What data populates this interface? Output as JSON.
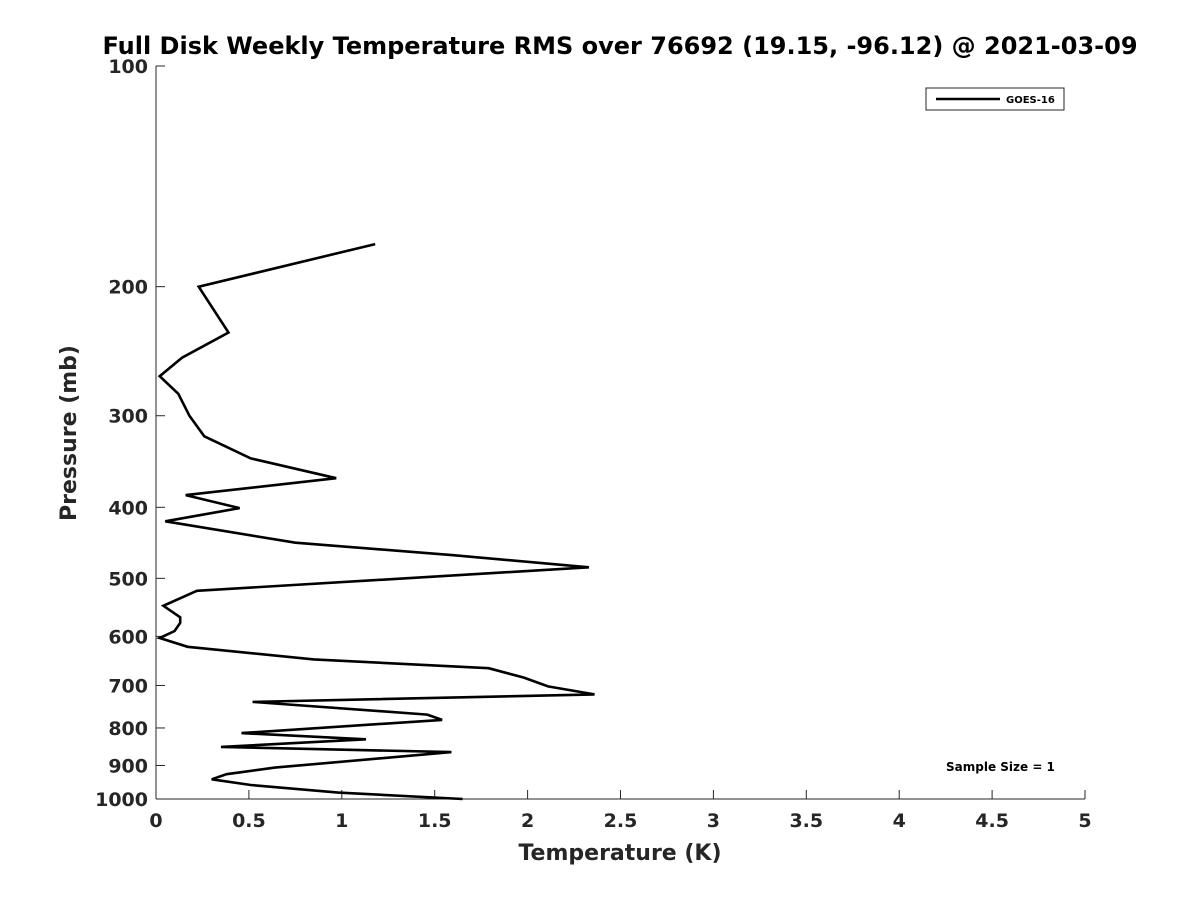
{
  "chart_data": {
    "type": "line",
    "title": "Full Disk Weekly Temperature RMS over 76692 (19.15, -96.12) @ 2021-03-09",
    "xlabel": "Temperature (K)",
    "ylabel": "Pressure (mb)",
    "xlim": [
      0,
      5
    ],
    "ylim": [
      100,
      1000
    ],
    "y_scale": "log",
    "y_reversed": true,
    "x_ticks": [
      "0",
      "0.5",
      "1",
      "1.5",
      "2",
      "2.5",
      "3",
      "3.5",
      "4",
      "4.5",
      "5"
    ],
    "x_tick_values": [
      0,
      0.5,
      1,
      1.5,
      2,
      2.5,
      3,
      3.5,
      4,
      4.5,
      5
    ],
    "y_ticks": [
      "100",
      "200",
      "300",
      "400",
      "500",
      "600",
      "700",
      "800",
      "900",
      "1000"
    ],
    "y_tick_values": [
      100,
      200,
      300,
      400,
      500,
      600,
      700,
      800,
      900,
      1000
    ],
    "grid": false,
    "legend_position": "top-right",
    "annotation": "Sample Size = 1",
    "series": [
      {
        "name": "GOES-16",
        "color": "#000000",
        "points": [
          [
            1.18,
            175
          ],
          [
            0.23,
            200
          ],
          [
            0.39,
            231
          ],
          [
            0.14,
            250
          ],
          [
            0.02,
            265
          ],
          [
            0.12,
            280
          ],
          [
            0.18,
            300
          ],
          [
            0.26,
            320
          ],
          [
            0.51,
            343
          ],
          [
            0.97,
            365
          ],
          [
            0.16,
            385
          ],
          [
            0.45,
            401
          ],
          [
            0.05,
            418
          ],
          [
            0.75,
            447
          ],
          [
            1.6,
            465
          ],
          [
            2.33,
            483
          ],
          [
            0.22,
            520
          ],
          [
            0.04,
            545
          ],
          [
            0.13,
            565
          ],
          [
            0.13,
            575
          ],
          [
            0.1,
            590
          ],
          [
            0.02,
            603
          ],
          [
            0.17,
            620
          ],
          [
            0.85,
            645
          ],
          [
            1.79,
            663
          ],
          [
            1.98,
            683
          ],
          [
            2.11,
            702
          ],
          [
            2.36,
            720
          ],
          [
            0.52,
            737
          ],
          [
            1.46,
            767
          ],
          [
            1.54,
            780
          ],
          [
            0.46,
            813
          ],
          [
            1.13,
            829
          ],
          [
            0.35,
            849
          ],
          [
            1.59,
            863
          ],
          [
            0.64,
            906
          ],
          [
            0.38,
            925
          ],
          [
            0.3,
            940
          ],
          [
            0.51,
            957
          ],
          [
            0.98,
            980
          ],
          [
            1.65,
            1000
          ]
        ]
      }
    ]
  }
}
